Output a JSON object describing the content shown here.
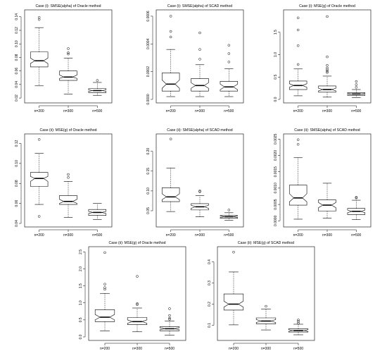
{
  "chart_data": [
    {
      "type": "box",
      "title": "Case (i): SMSE(alpha) of Oracle method",
      "categories": [
        "n=200",
        "n=300",
        "n=500"
      ],
      "yticks": [
        "0.02",
        "0.04",
        "0.06",
        "0.08",
        "0.10",
        "0.12",
        "0.14"
      ],
      "ylim": [
        0.018,
        0.145
      ],
      "boxes": [
        {
          "whislo": 0.038,
          "q1": 0.066,
          "med": 0.075,
          "q3": 0.088,
          "whishi": 0.124,
          "notch_lo": 0.071,
          "notch_hi": 0.079,
          "fliers": [
            0.136,
            0.139
          ]
        },
        {
          "whislo": 0.026,
          "q1": 0.046,
          "med": 0.051,
          "q3": 0.06,
          "whishi": 0.079,
          "notch_lo": 0.049,
          "notch_hi": 0.054,
          "fliers": [
            0.085,
            0.087,
            0.093
          ]
        },
        {
          "whislo": 0.024,
          "q1": 0.028,
          "med": 0.031,
          "q3": 0.034,
          "whishi": 0.043,
          "notch_lo": 0.03,
          "notch_hi": 0.032,
          "fliers": [
            0.046
          ]
        }
      ]
    },
    {
      "type": "box",
      "title": "Case (i): SMSE(alpha) of SCAD method",
      "categories": [
        "n=200",
        "n=300",
        "n=500"
      ],
      "yticks": [
        "0.0000",
        "0.0002",
        "0.0004",
        "0.0006"
      ],
      "ylim": [
        0.0,
        0.00062
      ],
      "boxes": [
        {
          "whislo": 2e-05,
          "q1": 6e-05,
          "med": 0.00011,
          "q3": 0.00019,
          "whishi": 0.00036,
          "notch_lo": 8e-05,
          "notch_hi": 0.00014,
          "fliers": [
            0.00045,
            0.00049,
            0.0006
          ]
        },
        {
          "whislo": 2e-05,
          "q1": 6e-05,
          "med": 0.0001,
          "q3": 0.00015,
          "whishi": 0.00025,
          "notch_lo": 8e-05,
          "notch_hi": 0.00012,
          "fliers": [
            0.00029,
            0.00036,
            0.00048
          ]
        },
        {
          "whislo": 2e-05,
          "q1": 6e-05,
          "med": 9e-05,
          "q3": 0.00013,
          "whishi": 0.00022,
          "notch_lo": 7e-05,
          "notch_hi": 0.00011,
          "fliers": [
            0.00027,
            0.00033,
            0.00039
          ]
        }
      ]
    },
    {
      "type": "box",
      "title": "Case (i): MSE(g) of Oracle method",
      "categories": [
        "n=200",
        "n=300",
        "n=500"
      ],
      "yticks": [
        "0.0",
        "0.5",
        "1.0",
        "1.5"
      ],
      "ylim": [
        0.0,
        1.92
      ],
      "boxes": [
        {
          "whislo": 0.08,
          "q1": 0.22,
          "med": 0.31,
          "q3": 0.41,
          "whishi": 0.68,
          "notch_lo": 0.27,
          "notch_hi": 0.35,
          "fliers": [
            0.78,
            1.2,
            1.55,
            1.82
          ]
        },
        {
          "whislo": 0.05,
          "q1": 0.16,
          "med": 0.22,
          "q3": 0.3,
          "whishi": 0.52,
          "notch_lo": 0.19,
          "notch_hi": 0.25,
          "fliers": [
            0.6,
            0.63,
            0.66,
            0.7,
            0.76,
            0.95,
            1.85
          ]
        },
        {
          "whislo": 0.04,
          "q1": 0.09,
          "med": 0.12,
          "q3": 0.15,
          "whishi": 0.22,
          "notch_lo": 0.11,
          "notch_hi": 0.13,
          "fliers": [
            0.27,
            0.33,
            0.4
          ]
        }
      ]
    },
    {
      "type": "box",
      "title": "Case (ii): MSE(g) of Oracle method",
      "categories": [
        "n=200",
        "n=300",
        "n=500"
      ],
      "yticks": [
        "0.04",
        "0.06",
        "0.08",
        "0.10",
        "0.12"
      ],
      "ylim": [
        0.04,
        0.126
      ],
      "boxes": [
        {
          "whislo": 0.059,
          "q1": 0.077,
          "med": 0.085,
          "q3": 0.091,
          "whishi": 0.11,
          "notch_lo": 0.082,
          "notch_hi": 0.087,
          "fliers": [
            0.047,
            0.124
          ]
        },
        {
          "whislo": 0.046,
          "q1": 0.059,
          "med": 0.062,
          "q3": 0.068,
          "whishi": 0.082,
          "notch_lo": 0.06,
          "notch_hi": 0.064,
          "fliers": [
            0.086,
            0.089
          ]
        },
        {
          "whislo": 0.044,
          "q1": 0.048,
          "med": 0.051,
          "q3": 0.054,
          "whishi": 0.06,
          "notch_lo": 0.05,
          "notch_hi": 0.052,
          "fliers": []
        }
      ]
    },
    {
      "type": "box",
      "title": "Case (ii): SMSE(alpha) of SCAD method",
      "categories": [
        "n=200",
        "n=300",
        "n=500"
      ],
      "yticks": [
        "0.05",
        "0.10",
        "0.15",
        "0.20"
      ],
      "ylim": [
        0.018,
        0.235
      ],
      "boxes": [
        {
          "whislo": 0.048,
          "q1": 0.073,
          "med": 0.085,
          "q3": 0.108,
          "whishi": 0.158,
          "notch_lo": 0.078,
          "notch_hi": 0.093,
          "fliers": [
            0.231
          ]
        },
        {
          "whislo": 0.035,
          "q1": 0.052,
          "med": 0.06,
          "q3": 0.068,
          "whishi": 0.088,
          "notch_lo": 0.056,
          "notch_hi": 0.064,
          "fliers": [
            0.098,
            0.1
          ]
        },
        {
          "whislo": 0.026,
          "q1": 0.031,
          "med": 0.035,
          "q3": 0.038,
          "whishi": 0.045,
          "notch_lo": 0.033,
          "notch_hi": 0.037,
          "fliers": [
            0.052
          ]
        }
      ]
    },
    {
      "type": "box",
      "title": "Case (ii): SMSE(alpha) of SCAD method",
      "categories": [
        "n=200",
        "n=300",
        "n=500"
      ],
      "yticks": [
        "0.0000",
        "0.0005",
        "0.0010",
        "0.0015",
        "0.0020",
        "0.0025"
      ],
      "ylim": [
        -8e-05,
        0.00255
      ],
      "boxes": [
        {
          "whislo": 5e-05,
          "q1": 0.00048,
          "med": 0.0007,
          "q3": 0.00109,
          "whishi": 0.00193,
          "notch_lo": 0.00058,
          "notch_hi": 0.00083,
          "fliers": [
            0.00234,
            0.00248
          ]
        },
        {
          "whislo": 8e-05,
          "q1": 0.0003,
          "med": 0.00048,
          "q3": 0.00064,
          "whishi": 0.00115,
          "notch_lo": 0.0004,
          "notch_hi": 0.00056,
          "fliers": []
        },
        {
          "whislo": 4e-05,
          "q1": 0.00019,
          "med": 0.00029,
          "q3": 0.00038,
          "whishi": 0.00063,
          "notch_lo": 0.00025,
          "notch_hi": 0.00033,
          "fliers": [
            0.0007,
            0.00072
          ]
        }
      ]
    },
    {
      "type": "box",
      "title": "Case (ii): MSE(g) of Oracle method",
      "categories": [
        "n=200",
        "n=300",
        "n=500"
      ],
      "yticks": [
        "0.0",
        "0.5",
        "1.0",
        "1.5",
        "2.0",
        "2.5"
      ],
      "ylim": [
        0.0,
        2.55
      ],
      "boxes": [
        {
          "whislo": 0.18,
          "q1": 0.45,
          "med": 0.58,
          "q3": 0.8,
          "whishi": 1.28,
          "notch_lo": 0.5,
          "notch_hi": 0.66,
          "fliers": [
            1.4,
            1.45,
            1.55,
            2.48
          ]
        },
        {
          "whislo": 0.15,
          "q1": 0.36,
          "med": 0.45,
          "q3": 0.57,
          "whishi": 0.85,
          "notch_lo": 0.4,
          "notch_hi": 0.5,
          "fliers": [
            0.95,
            0.98,
            1.78
          ]
        },
        {
          "whislo": 0.05,
          "q1": 0.18,
          "med": 0.24,
          "q3": 0.3,
          "whishi": 0.47,
          "notch_lo": 0.21,
          "notch_hi": 0.27,
          "fliers": [
            0.52,
            0.55,
            0.63,
            0.83
          ]
        }
      ]
    },
    {
      "type": "box",
      "title": "Case (ii): MSE(g) of SCAD method",
      "categories": [
        "n=200",
        "n=300",
        "n=500"
      ],
      "yticks": [
        "0.1",
        "0.2",
        "0.3",
        "0.4"
      ],
      "ylim": [
        0.045,
        0.455
      ],
      "boxes": [
        {
          "whislo": 0.102,
          "q1": 0.172,
          "med": 0.2,
          "q3": 0.248,
          "whishi": 0.352,
          "notch_lo": 0.186,
          "notch_hi": 0.214,
          "fliers": [
            0.446
          ]
        },
        {
          "whislo": 0.078,
          "q1": 0.107,
          "med": 0.12,
          "q3": 0.135,
          "whishi": 0.177,
          "notch_lo": 0.113,
          "notch_hi": 0.127,
          "fliers": [
            0.19
          ]
        },
        {
          "whislo": 0.055,
          "q1": 0.068,
          "med": 0.075,
          "q3": 0.083,
          "whishi": 0.105,
          "notch_lo": 0.071,
          "notch_hi": 0.079,
          "fliers": [
            0.11,
            0.118,
            0.125
          ]
        }
      ]
    }
  ]
}
